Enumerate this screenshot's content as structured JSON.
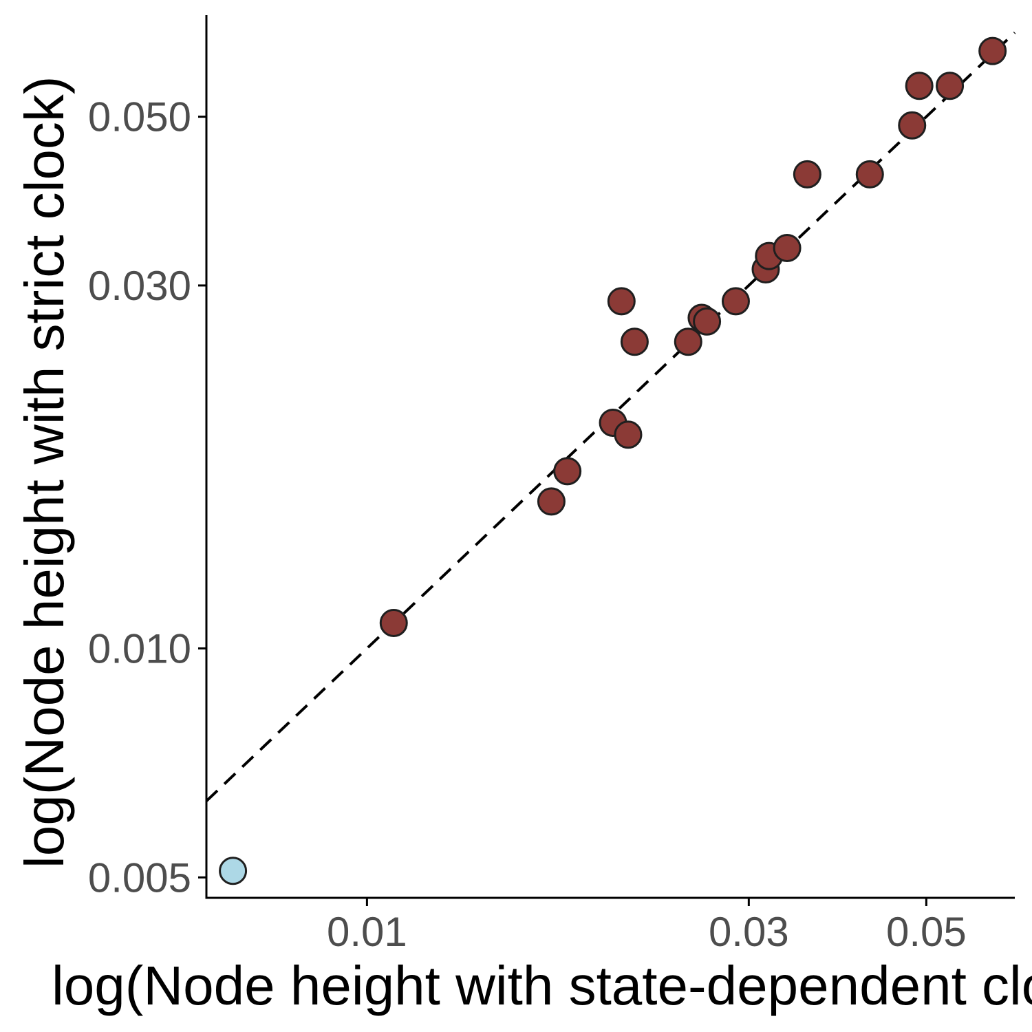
{
  "chart_data": {
    "type": "scatter",
    "xlabel": "log(Node height with state-dependent clock)",
    "ylabel": "log(Node height with strict clock)",
    "x_scale": "log",
    "y_scale": "log",
    "xlim": [
      0.0063,
      0.0645
    ],
    "ylim": [
      0.0047,
      0.068
    ],
    "x_ticks": [
      0.01,
      0.03,
      0.05
    ],
    "x_tick_labels": [
      "0.01",
      "0.03",
      "0.05"
    ],
    "y_ticks": [
      0.005,
      0.01,
      0.03,
      0.05
    ],
    "y_tick_labels": [
      "0.005",
      "0.010",
      "0.030",
      "0.050"
    ],
    "grid": false,
    "legend": "none",
    "reference_line": {
      "type": "identity",
      "style": "dashed",
      "color": "#000000"
    },
    "series": [
      {
        "color": "#8b3a36",
        "points": [
          {
            "x": 0.0108,
            "y": 0.0108
          },
          {
            "x": 0.017,
            "y": 0.0156
          },
          {
            "x": 0.0178,
            "y": 0.0171
          },
          {
            "x": 0.0203,
            "y": 0.0198
          },
          {
            "x": 0.0208,
            "y": 0.0286
          },
          {
            "x": 0.0212,
            "y": 0.0191
          },
          {
            "x": 0.0216,
            "y": 0.0253
          },
          {
            "x": 0.0252,
            "y": 0.0253
          },
          {
            "x": 0.0262,
            "y": 0.0272
          },
          {
            "x": 0.0266,
            "y": 0.0269
          },
          {
            "x": 0.0289,
            "y": 0.0286
          },
          {
            "x": 0.0315,
            "y": 0.0315
          },
          {
            "x": 0.0318,
            "y": 0.0328
          },
          {
            "x": 0.0335,
            "y": 0.0336
          },
          {
            "x": 0.0355,
            "y": 0.042
          },
          {
            "x": 0.0425,
            "y": 0.042
          },
          {
            "x": 0.048,
            "y": 0.0487
          },
          {
            "x": 0.049,
            "y": 0.0549
          },
          {
            "x": 0.0535,
            "y": 0.0549
          },
          {
            "x": 0.0605,
            "y": 0.061
          }
        ]
      },
      {
        "color": "#add8e6",
        "points": [
          {
            "x": 0.0068,
            "y": 0.0051
          }
        ]
      }
    ]
  }
}
